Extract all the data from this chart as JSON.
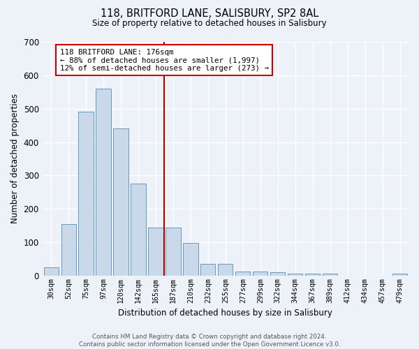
{
  "title": "118, BRITFORD LANE, SALISBURY, SP2 8AL",
  "subtitle": "Size of property relative to detached houses in Salisbury",
  "xlabel": "Distribution of detached houses by size in Salisbury",
  "ylabel": "Number of detached properties",
  "categories": [
    "30sqm",
    "52sqm",
    "75sqm",
    "97sqm",
    "120sqm",
    "142sqm",
    "165sqm",
    "187sqm",
    "210sqm",
    "232sqm",
    "255sqm",
    "277sqm",
    "299sqm",
    "322sqm",
    "344sqm",
    "367sqm",
    "389sqm",
    "412sqm",
    "434sqm",
    "457sqm",
    "479sqm"
  ],
  "values": [
    25,
    155,
    490,
    560,
    440,
    275,
    145,
    145,
    97,
    35,
    35,
    13,
    12,
    10,
    7,
    5,
    5,
    0,
    0,
    0,
    6
  ],
  "bar_color": "#c9d9ea",
  "bar_edge_color": "#6699bb",
  "background_color": "#edf2f9",
  "grid_color": "#ffffff",
  "annotation_line_color": "#aa0000",
  "annotation_box_text": "118 BRITFORD LANE: 176sqm\n← 88% of detached houses are smaller (1,997)\n12% of semi-detached houses are larger (273) →",
  "annotation_box_color": "#ffffff",
  "annotation_box_edge_color": "#cc0000",
  "footnote": "Contains HM Land Registry data © Crown copyright and database right 2024.\nContains public sector information licensed under the Open Government Licence v3.0.",
  "ylim": [
    0,
    700
  ],
  "yticks": [
    0,
    100,
    200,
    300,
    400,
    500,
    600,
    700
  ]
}
